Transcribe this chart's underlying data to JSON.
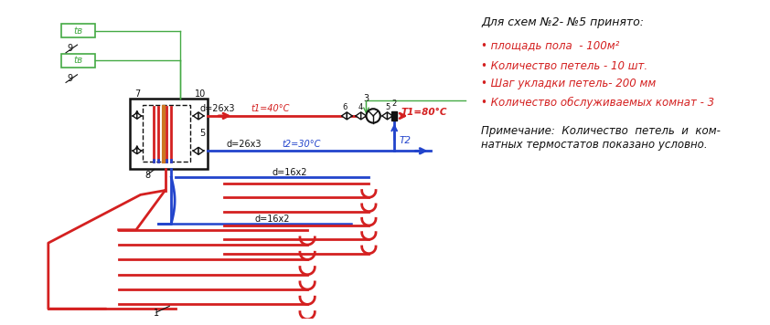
{
  "bg_color": "#ffffff",
  "red_color": "#d42020",
  "blue_color": "#2244cc",
  "green_color": "#44aa44",
  "black_color": "#111111",
  "orange_color": "#cc7722",
  "title": "Для схем №2- №5 принято:",
  "bullet1": "• площадь пола  - 100м²",
  "bullet2": "• Количество петель - 10 шт.",
  "bullet3": "• Шаг укладки петель- 200 мм",
  "bullet4": "• Количество обслуживаемых комнат - 3",
  "note1": "Примечание:  Количество  петель  и  ком-",
  "note2": "натных термостатов показано условно."
}
